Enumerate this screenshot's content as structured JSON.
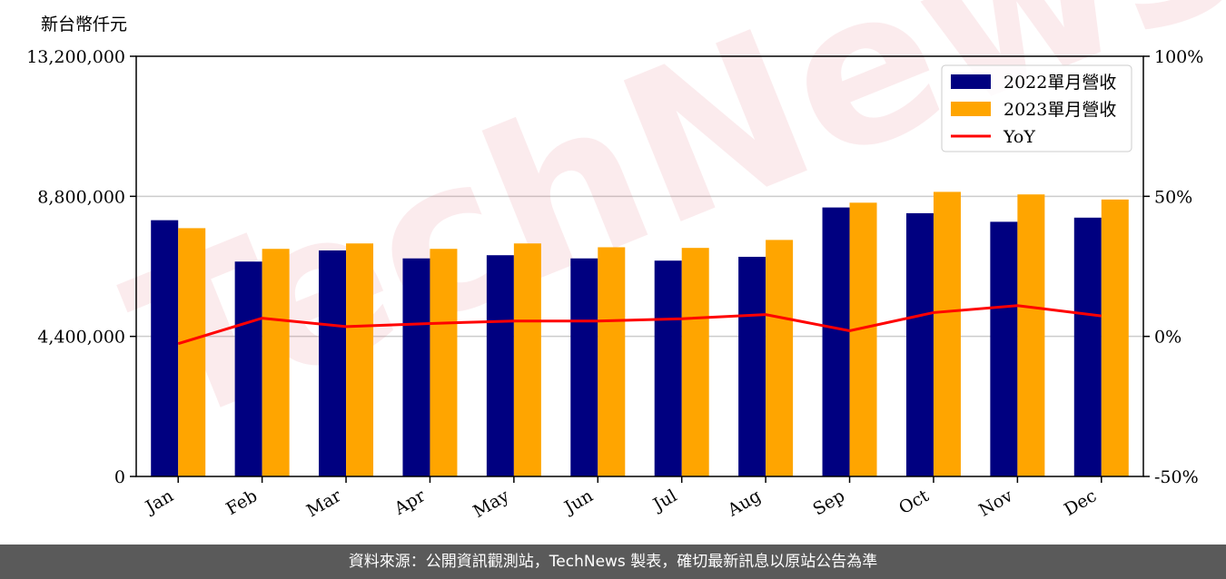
{
  "watermark": "TechNews",
  "footer": "資料來源：公開資訊觀測站，TechNews 製表，確切最新訊息以原站公告為準",
  "colors": {
    "series_2022": "#000080",
    "series_2023": "#ffa500",
    "yoy": "#ff0000",
    "grid": "#cccccc"
  },
  "chart_data": {
    "type": "bar",
    "ylabel": "新台幣仟元",
    "categories": [
      "Jan",
      "Feb",
      "Mar",
      "Apr",
      "May",
      "Jun",
      "Jul",
      "Aug",
      "Sep",
      "Oct",
      "Nov",
      "Dec"
    ],
    "ylim": [
      0,
      13200000
    ],
    "yticks": [
      0,
      4400000,
      8800000,
      13200000
    ],
    "ytick_labels": [
      "0",
      "4,400,000",
      "8,800,000",
      "13,200,000"
    ],
    "y2lim": [
      -50,
      100
    ],
    "y2ticks": [
      -50,
      0,
      50,
      100
    ],
    "y2tick_labels": [
      "-50%",
      "0%",
      "50%",
      "100%"
    ],
    "grid": "horizontal",
    "legend_position": "top-right",
    "series": [
      {
        "name": "2022單月營收",
        "kind": "bar",
        "axis": "left",
        "values": [
          8050000,
          6750000,
          7100000,
          6850000,
          6950000,
          6850000,
          6780000,
          6900000,
          8450000,
          8270000,
          8000000,
          8130000
        ]
      },
      {
        "name": "2023單月營收",
        "kind": "bar",
        "axis": "left",
        "values": [
          7800000,
          7150000,
          7320000,
          7150000,
          7320000,
          7200000,
          7180000,
          7430000,
          8600000,
          8940000,
          8860000,
          8700000
        ]
      },
      {
        "name": "YoY",
        "kind": "line",
        "axis": "right",
        "values": [
          -2.6,
          6.5,
          3.5,
          4.6,
          5.5,
          5.5,
          6.3,
          7.8,
          2.0,
          8.5,
          11.0,
          7.3
        ]
      }
    ]
  }
}
